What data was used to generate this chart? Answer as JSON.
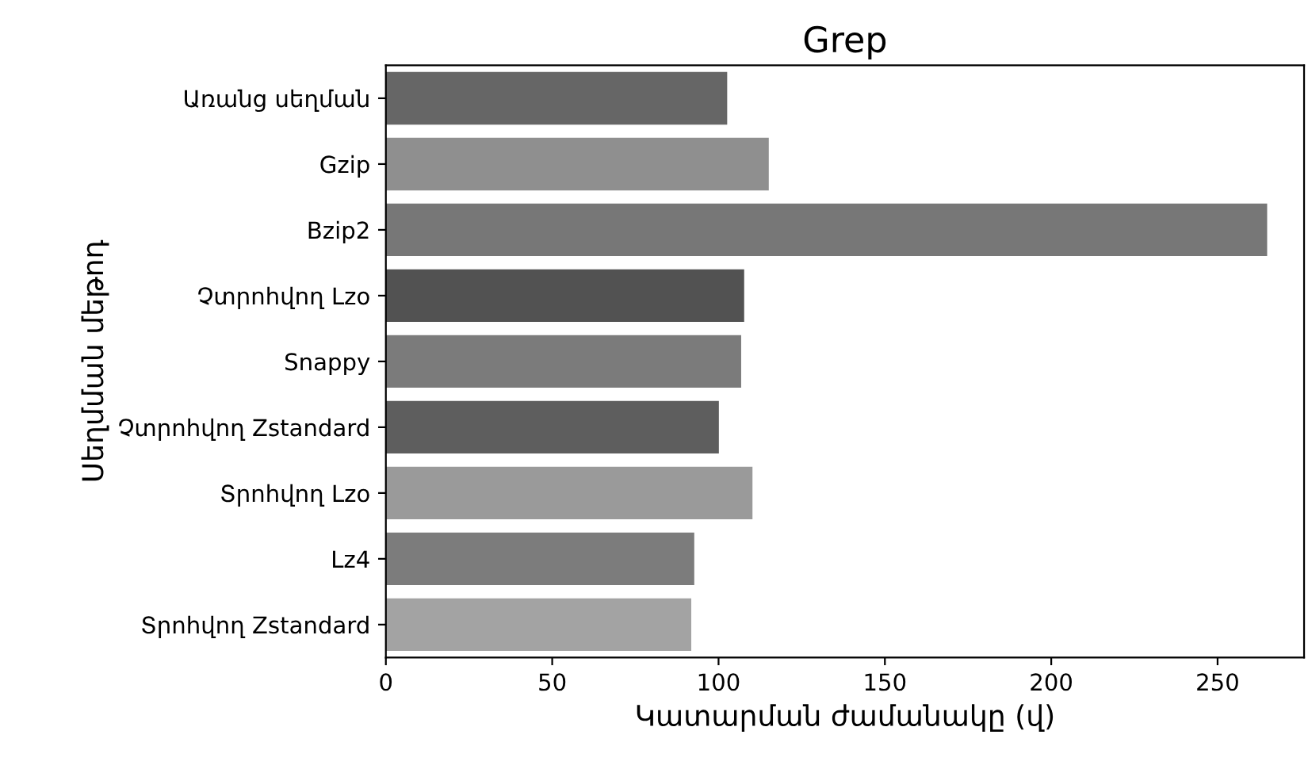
{
  "chart_data": {
    "type": "bar",
    "orientation": "horizontal",
    "title": "Grep",
    "xlabel": "Կատարման ժամանակը (վ)",
    "ylabel": "Սեղմման մեթոդ",
    "categories": [
      "Առանց սեղման",
      "Gzip",
      "Bzip2",
      "Չտրոհվող Lzo",
      "Snappy",
      "Չտրոհվող Zstandard",
      "Տրոհվող Lzo",
      "Lz4",
      "Տրոհվող Zstandard"
    ],
    "values": [
      102.6,
      115.1,
      264.9,
      107.7,
      106.8,
      100.1,
      110.2,
      92.7,
      91.8
    ],
    "colors": [
      "#666666",
      "#8f8f8f",
      "#777777",
      "#525252",
      "#7b7b7b",
      "#5e5e5e",
      "#9a9a9a",
      "#7c7c7c",
      "#a3a3a3"
    ],
    "xlim": [
      0,
      276
    ],
    "xticks": [
      0,
      50,
      100,
      150,
      200,
      250
    ],
    "grid": false
  }
}
